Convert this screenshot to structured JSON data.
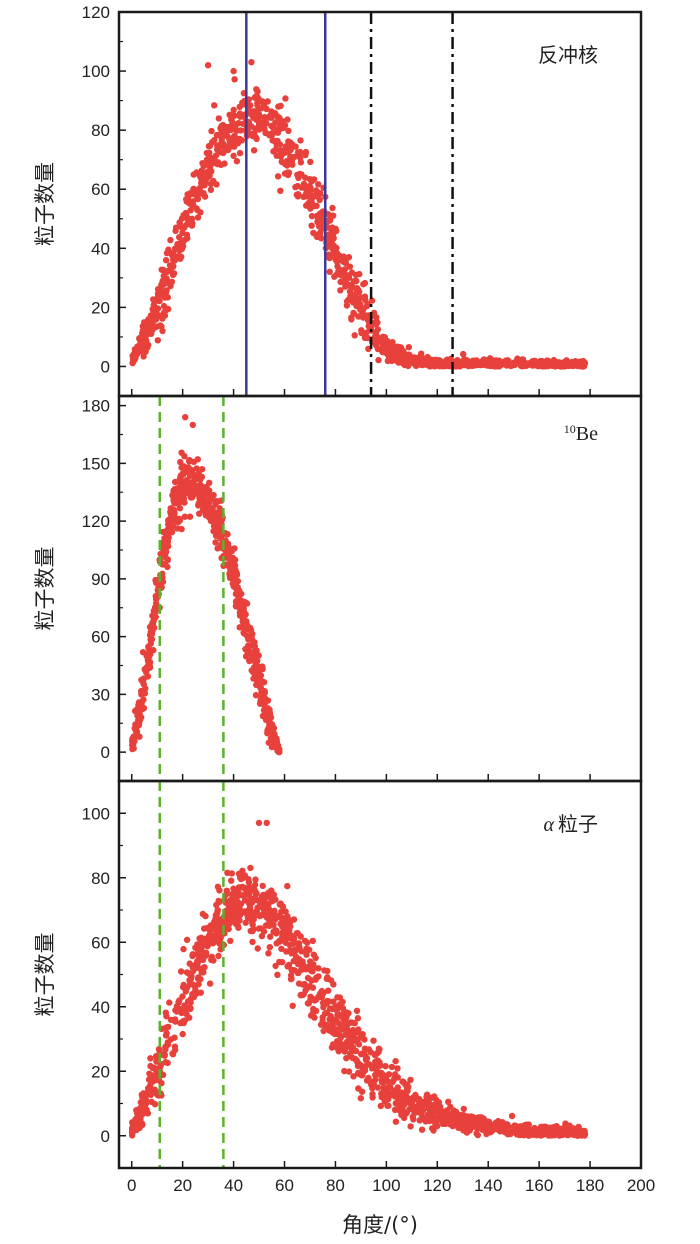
{
  "chart_data": {
    "type": "scatter",
    "xlabel": "角度/(°)",
    "xlim": [
      -5,
      200
    ],
    "xticks": [
      0,
      20,
      40,
      60,
      80,
      100,
      120,
      140,
      160,
      180,
      200
    ],
    "marker_color": "#e8413c",
    "panels": [
      {
        "id": "recoil",
        "legend": "反冲核",
        "ylabel": "粒子数量",
        "ylim": [
          -10,
          120
        ],
        "yticks": [
          0,
          20,
          40,
          60,
          80,
          100,
          120
        ],
        "vlines": [
          {
            "x": 45,
            "style": "solid",
            "color": "#3a3a9a"
          },
          {
            "x": 76,
            "style": "solid",
            "color": "#3a3a9a"
          },
          {
            "x": 94,
            "style": "dashdot",
            "color": "#111111"
          },
          {
            "x": 126,
            "style": "dashdot",
            "color": "#111111"
          }
        ],
        "curve": {
          "x": [
            0,
            5,
            10,
            15,
            20,
            25,
            30,
            35,
            40,
            45,
            50,
            55,
            60,
            65,
            70,
            75,
            80,
            85,
            90,
            95,
            100,
            105,
            110,
            115,
            120,
            130,
            140,
            150,
            160,
            170,
            178
          ],
          "y": [
            2,
            10,
            20,
            32,
            46,
            58,
            68,
            76,
            80,
            84,
            84,
            80,
            74,
            67,
            58,
            48,
            38,
            28,
            20,
            12,
            6,
            4,
            2,
            1.5,
            1,
            1,
            0.8,
            0.6,
            0.5,
            0.4,
            0.3
          ]
        },
        "x_range": [
          0,
          178
        ],
        "scatter_spread": 7,
        "point_count": 1400,
        "outliers": [
          {
            "x": 30,
            "y": 102
          },
          {
            "x": 40,
            "y": 100
          },
          {
            "x": 47,
            "y": 103
          }
        ]
      },
      {
        "id": "be10",
        "legend_sup": "10",
        "legend_main": "Be",
        "ylabel": "粒子数量",
        "ylim": [
          -15,
          185
        ],
        "yticks": [
          0,
          30,
          60,
          90,
          120,
          150,
          180
        ],
        "vlines": [
          {
            "x": 11,
            "style": "dashed",
            "color": "#5cb22c"
          },
          {
            "x": 36,
            "style": "dashed",
            "color": "#5cb22c"
          }
        ],
        "curve": {
          "x": [
            0,
            5,
            10,
            15,
            20,
            25,
            30,
            35,
            40,
            45,
            50,
            55,
            58
          ],
          "y": [
            2,
            35,
            80,
            120,
            140,
            142,
            130,
            115,
            92,
            65,
            38,
            10,
            1
          ]
        },
        "x_range": [
          0,
          58
        ],
        "scatter_spread": 8,
        "point_count": 700,
        "outliers": [
          {
            "x": 21,
            "y": 174
          },
          {
            "x": 24,
            "y": 170
          }
        ]
      },
      {
        "id": "alpha",
        "legend_greek": "α",
        "legend_main": "粒子",
        "ylabel": "粒子数量",
        "ylim": [
          -10,
          110
        ],
        "yticks": [
          0,
          20,
          40,
          60,
          80,
          100
        ],
        "vlines": [
          {
            "x": 11,
            "style": "dashed",
            "color": "#5cb22c"
          },
          {
            "x": 36,
            "style": "dashed",
            "color": "#5cb22c"
          }
        ],
        "curve": {
          "x": [
            0,
            5,
            10,
            15,
            20,
            25,
            30,
            35,
            40,
            45,
            50,
            55,
            60,
            65,
            70,
            75,
            80,
            85,
            90,
            95,
            100,
            110,
            120,
            130,
            140,
            150,
            160,
            170,
            178
          ],
          "y": [
            2,
            10,
            20,
            31,
            42,
            52,
            60,
            66,
            70,
            72,
            72,
            68,
            62,
            56,
            49,
            42,
            36,
            30,
            24,
            20,
            16,
            10,
            7,
            4.5,
            3,
            2,
            1.5,
            1,
            0.8
          ]
        },
        "x_range": [
          0,
          178
        ],
        "scatter_spread": 7,
        "point_count": 1500,
        "outliers": [
          {
            "x": 50,
            "y": 97
          },
          {
            "x": 53,
            "y": 97
          },
          {
            "x": 110,
            "y": 10
          }
        ]
      }
    ]
  }
}
